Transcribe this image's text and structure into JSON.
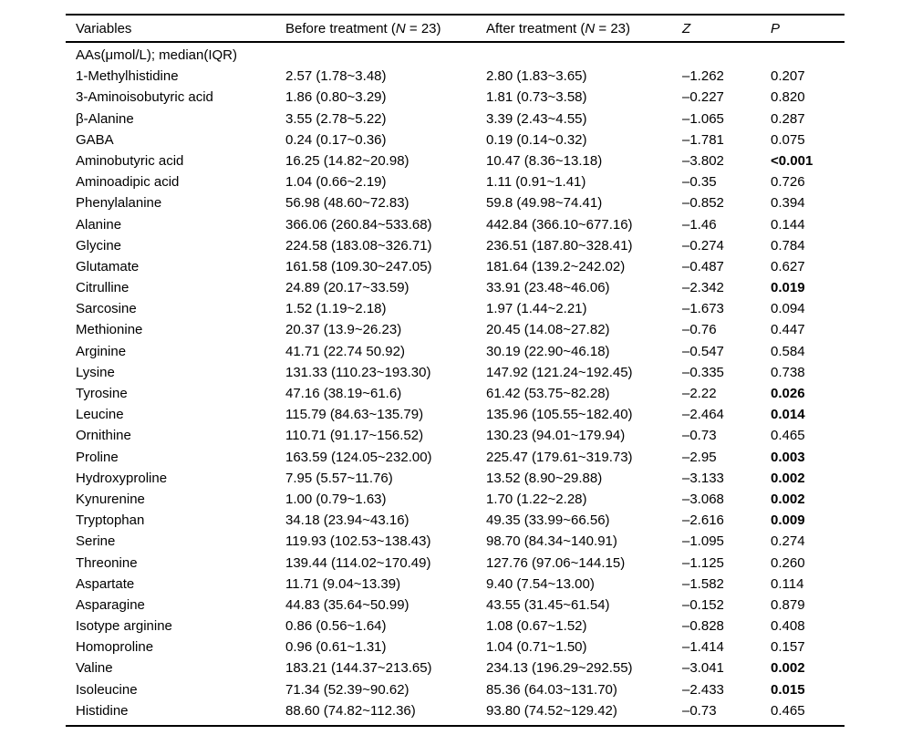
{
  "table": {
    "colors": {
      "text": "#000000",
      "background": "#ffffff",
      "rule": "#000000"
    },
    "header": {
      "variables": "Variables",
      "before_prefix": "Before treatment (",
      "before_n": "N",
      "before_suffix": " = 23)",
      "after_prefix": "After treatment (",
      "after_n": "N",
      "after_suffix": " = 23)",
      "z": "Z",
      "p": "P"
    },
    "group_label": "AAs(μmol/L); median(IQR)",
    "rows": [
      {
        "variable": "1-Methylhistidine",
        "before": "2.57 (1.78~3.48)",
        "after": "2.80 (1.83~3.65)",
        "z": "–1.262",
        "p": "0.207",
        "p_bold": false
      },
      {
        "variable": "3-Aminoisobutyric acid",
        "before": "1.86 (0.80~3.29)",
        "after": "1.81 (0.73~3.58)",
        "z": "–0.227",
        "p": "0.820",
        "p_bold": false
      },
      {
        "variable": "β-Alanine",
        "before": "3.55 (2.78~5.22)",
        "after": "3.39 (2.43~4.55)",
        "z": "–1.065",
        "p": "0.287",
        "p_bold": false
      },
      {
        "variable": "GABA",
        "before": "0.24 (0.17~0.36)",
        "after": "0.19 (0.14~0.32)",
        "z": "–1.781",
        "p": "0.075",
        "p_bold": false
      },
      {
        "variable": "Aminobutyric acid",
        "before": "16.25 (14.82~20.98)",
        "after": "10.47 (8.36~13.18)",
        "z": "–3.802",
        "p": "<0.001",
        "p_bold": true
      },
      {
        "variable": "Aminoadipic acid",
        "before": "1.04 (0.66~2.19)",
        "after": "1.11 (0.91~1.41)",
        "z": "–0.35",
        "p": "0.726",
        "p_bold": false
      },
      {
        "variable": "Phenylalanine",
        "before": "56.98 (48.60~72.83)",
        "after": "59.8 (49.98~74.41)",
        "z": "–0.852",
        "p": "0.394",
        "p_bold": false
      },
      {
        "variable": "Alanine",
        "before": "366.06 (260.84~533.68)",
        "after": "442.84 (366.10~677.16)",
        "z": "–1.46",
        "p": "0.144",
        "p_bold": false
      },
      {
        "variable": "Glycine",
        "before": "224.58 (183.08~326.71)",
        "after": "236.51 (187.80~328.41)",
        "z": "–0.274",
        "p": "0.784",
        "p_bold": false
      },
      {
        "variable": "Glutamate",
        "before": "161.58 (109.30~247.05)",
        "after": "181.64 (139.2~242.02)",
        "z": "–0.487",
        "p": "0.627",
        "p_bold": false
      },
      {
        "variable": "Citrulline",
        "before": "24.89 (20.17~33.59)",
        "after": "33.91 (23.48~46.06)",
        "z": "–2.342",
        "p": "0.019",
        "p_bold": true
      },
      {
        "variable": "Sarcosine",
        "before": "1.52 (1.19~2.18)",
        "after": "1.97 (1.44~2.21)",
        "z": "–1.673",
        "p": "0.094",
        "p_bold": false
      },
      {
        "variable": "Methionine",
        "before": "20.37 (13.9~26.23)",
        "after": "20.45 (14.08~27.82)",
        "z": "–0.76",
        "p": "0.447",
        "p_bold": false
      },
      {
        "variable": "Arginine",
        "before": "41.71 (22.74 50.92)",
        "after": "30.19 (22.90~46.18)",
        "z": "–0.547",
        "p": "0.584",
        "p_bold": false
      },
      {
        "variable": "Lysine",
        "before": "131.33 (110.23~193.30)",
        "after": "147.92 (121.24~192.45)",
        "z": "–0.335",
        "p": "0.738",
        "p_bold": false
      },
      {
        "variable": "Tyrosine",
        "before": "47.16 (38.19~61.6)",
        "after": "61.42 (53.75~82.28)",
        "z": "–2.22",
        "p": "0.026",
        "p_bold": true
      },
      {
        "variable": "Leucine",
        "before": "115.79 (84.63~135.79)",
        "after": "135.96 (105.55~182.40)",
        "z": "–2.464",
        "p": "0.014",
        "p_bold": true
      },
      {
        "variable": "Ornithine",
        "before": "110.71 (91.17~156.52)",
        "after": "130.23 (94.01~179.94)",
        "z": "–0.73",
        "p": "0.465",
        "p_bold": false
      },
      {
        "variable": "Proline",
        "before": "163.59 (124.05~232.00)",
        "after": "225.47 (179.61~319.73)",
        "z": "–2.95",
        "p": "0.003",
        "p_bold": true
      },
      {
        "variable": "Hydroxyproline",
        "before": "7.95 (5.57~11.76)",
        "after": "13.52 (8.90~29.88)",
        "z": "–3.133",
        "p": "0.002",
        "p_bold": true
      },
      {
        "variable": "Kynurenine",
        "before": "1.00 (0.79~1.63)",
        "after": "1.70 (1.22~2.28)",
        "z": "–3.068",
        "p": "0.002",
        "p_bold": true
      },
      {
        "variable": "Tryptophan",
        "before": "34.18 (23.94~43.16)",
        "after": "49.35 (33.99~66.56)",
        "z": "–2.616",
        "p": "0.009",
        "p_bold": true
      },
      {
        "variable": "Serine",
        "before": "119.93 (102.53~138.43)",
        "after": "98.70 (84.34~140.91)",
        "z": "–1.095",
        "p": "0.274",
        "p_bold": false
      },
      {
        "variable": "Threonine",
        "before": "139.44 (114.02~170.49)",
        "after": "127.76 (97.06~144.15)",
        "z": "–1.125",
        "p": "0.260",
        "p_bold": false
      },
      {
        "variable": "Aspartate",
        "before": "11.71 (9.04~13.39)",
        "after": "9.40 (7.54~13.00)",
        "z": "–1.582",
        "p": "0.114",
        "p_bold": false
      },
      {
        "variable": "Asparagine",
        "before": "44.83 (35.64~50.99)",
        "after": "43.55 (31.45~61.54)",
        "z": "–0.152",
        "p": "0.879",
        "p_bold": false
      },
      {
        "variable": "Isotype arginine",
        "before": "0.86 (0.56~1.64)",
        "after": "1.08 (0.67~1.52)",
        "z": "–0.828",
        "p": "0.408",
        "p_bold": false
      },
      {
        "variable": "Homoproline",
        "before": "0.96 (0.61~1.31)",
        "after": "1.04 (0.71~1.50)",
        "z": "–1.414",
        "p": "0.157",
        "p_bold": false
      },
      {
        "variable": "Valine",
        "before": "183.21 (144.37~213.65)",
        "after": "234.13 (196.29~292.55)",
        "z": "–3.041",
        "p": "0.002",
        "p_bold": true
      },
      {
        "variable": "Isoleucine",
        "before": "71.34 (52.39~90.62)",
        "after": "85.36 (64.03~131.70)",
        "z": "–2.433",
        "p": "0.015",
        "p_bold": true
      },
      {
        "variable": "Histidine",
        "before": "88.60 (74.82~112.36)",
        "after": "93.80 (74.52~129.42)",
        "z": "–0.73",
        "p": "0.465",
        "p_bold": false
      }
    ]
  }
}
